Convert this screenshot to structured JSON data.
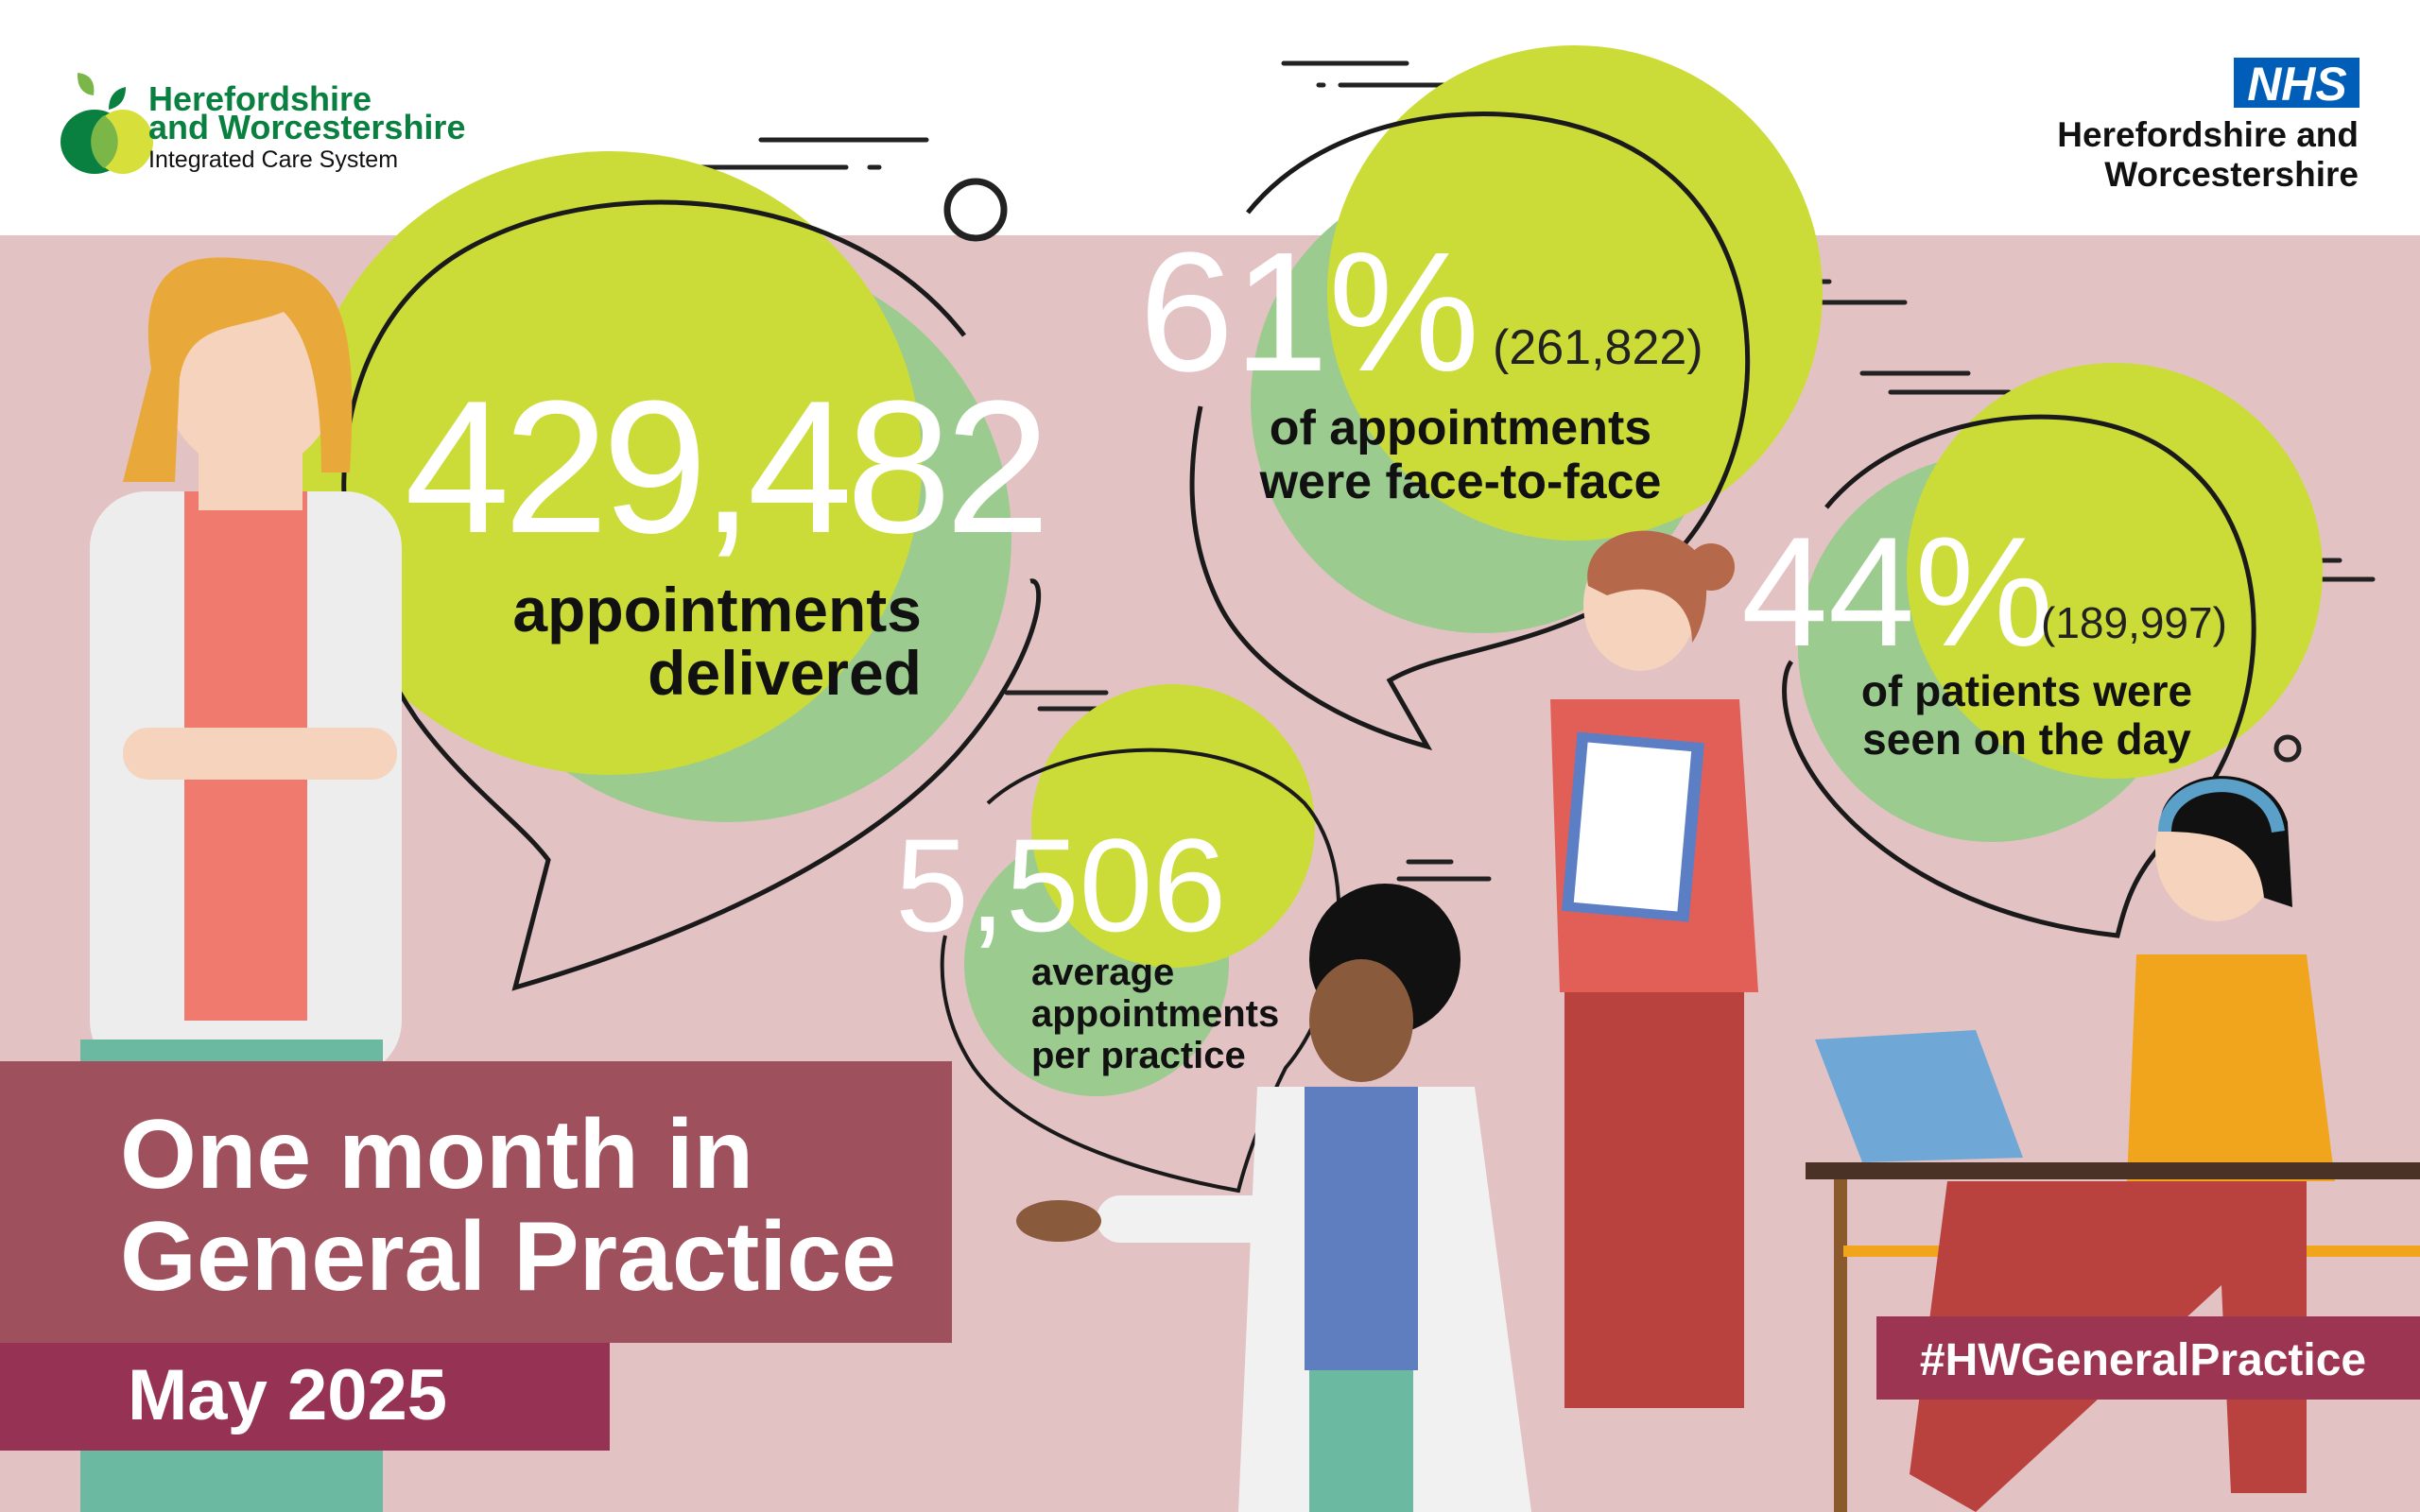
{
  "header": {
    "ics_logo": {
      "line1": "Herefordshire",
      "line2": "and Worcestershire",
      "line3": "Integrated Care System"
    },
    "nhs_logo": {
      "badge": "NHS",
      "line1": "Herefordshire and",
      "line2": "Worcestershire"
    }
  },
  "stats": {
    "appointments": {
      "value": "429,482",
      "label_line1": "appointments",
      "label_line2": "delivered"
    },
    "face_to_face": {
      "value": "61%",
      "count": "(261,822)",
      "label_line1": "of appointments",
      "label_line2": "were face-to-face"
    },
    "same_day": {
      "value": "44%",
      "count": "(189,997)",
      "label_line1": "of patients were",
      "label_line2": "seen on the day"
    },
    "per_practice": {
      "value": "5,506",
      "label_line1": "average",
      "label_line2": "appointments",
      "label_line3": "per practice"
    }
  },
  "title": {
    "line1": "One month in",
    "line2": "General Practice",
    "period": "May 2025"
  },
  "hashtag": "#HWGeneralPractice",
  "colors": {
    "background_band": "#e3c2c4",
    "lime": "#cbdc38",
    "green": "#9ccb8f",
    "title_box": "#9e505d",
    "period_box": "#963253",
    "hashtag_box": "#9b3552",
    "nhs_blue": "#005eb8",
    "ics_green": "#0a8040"
  }
}
